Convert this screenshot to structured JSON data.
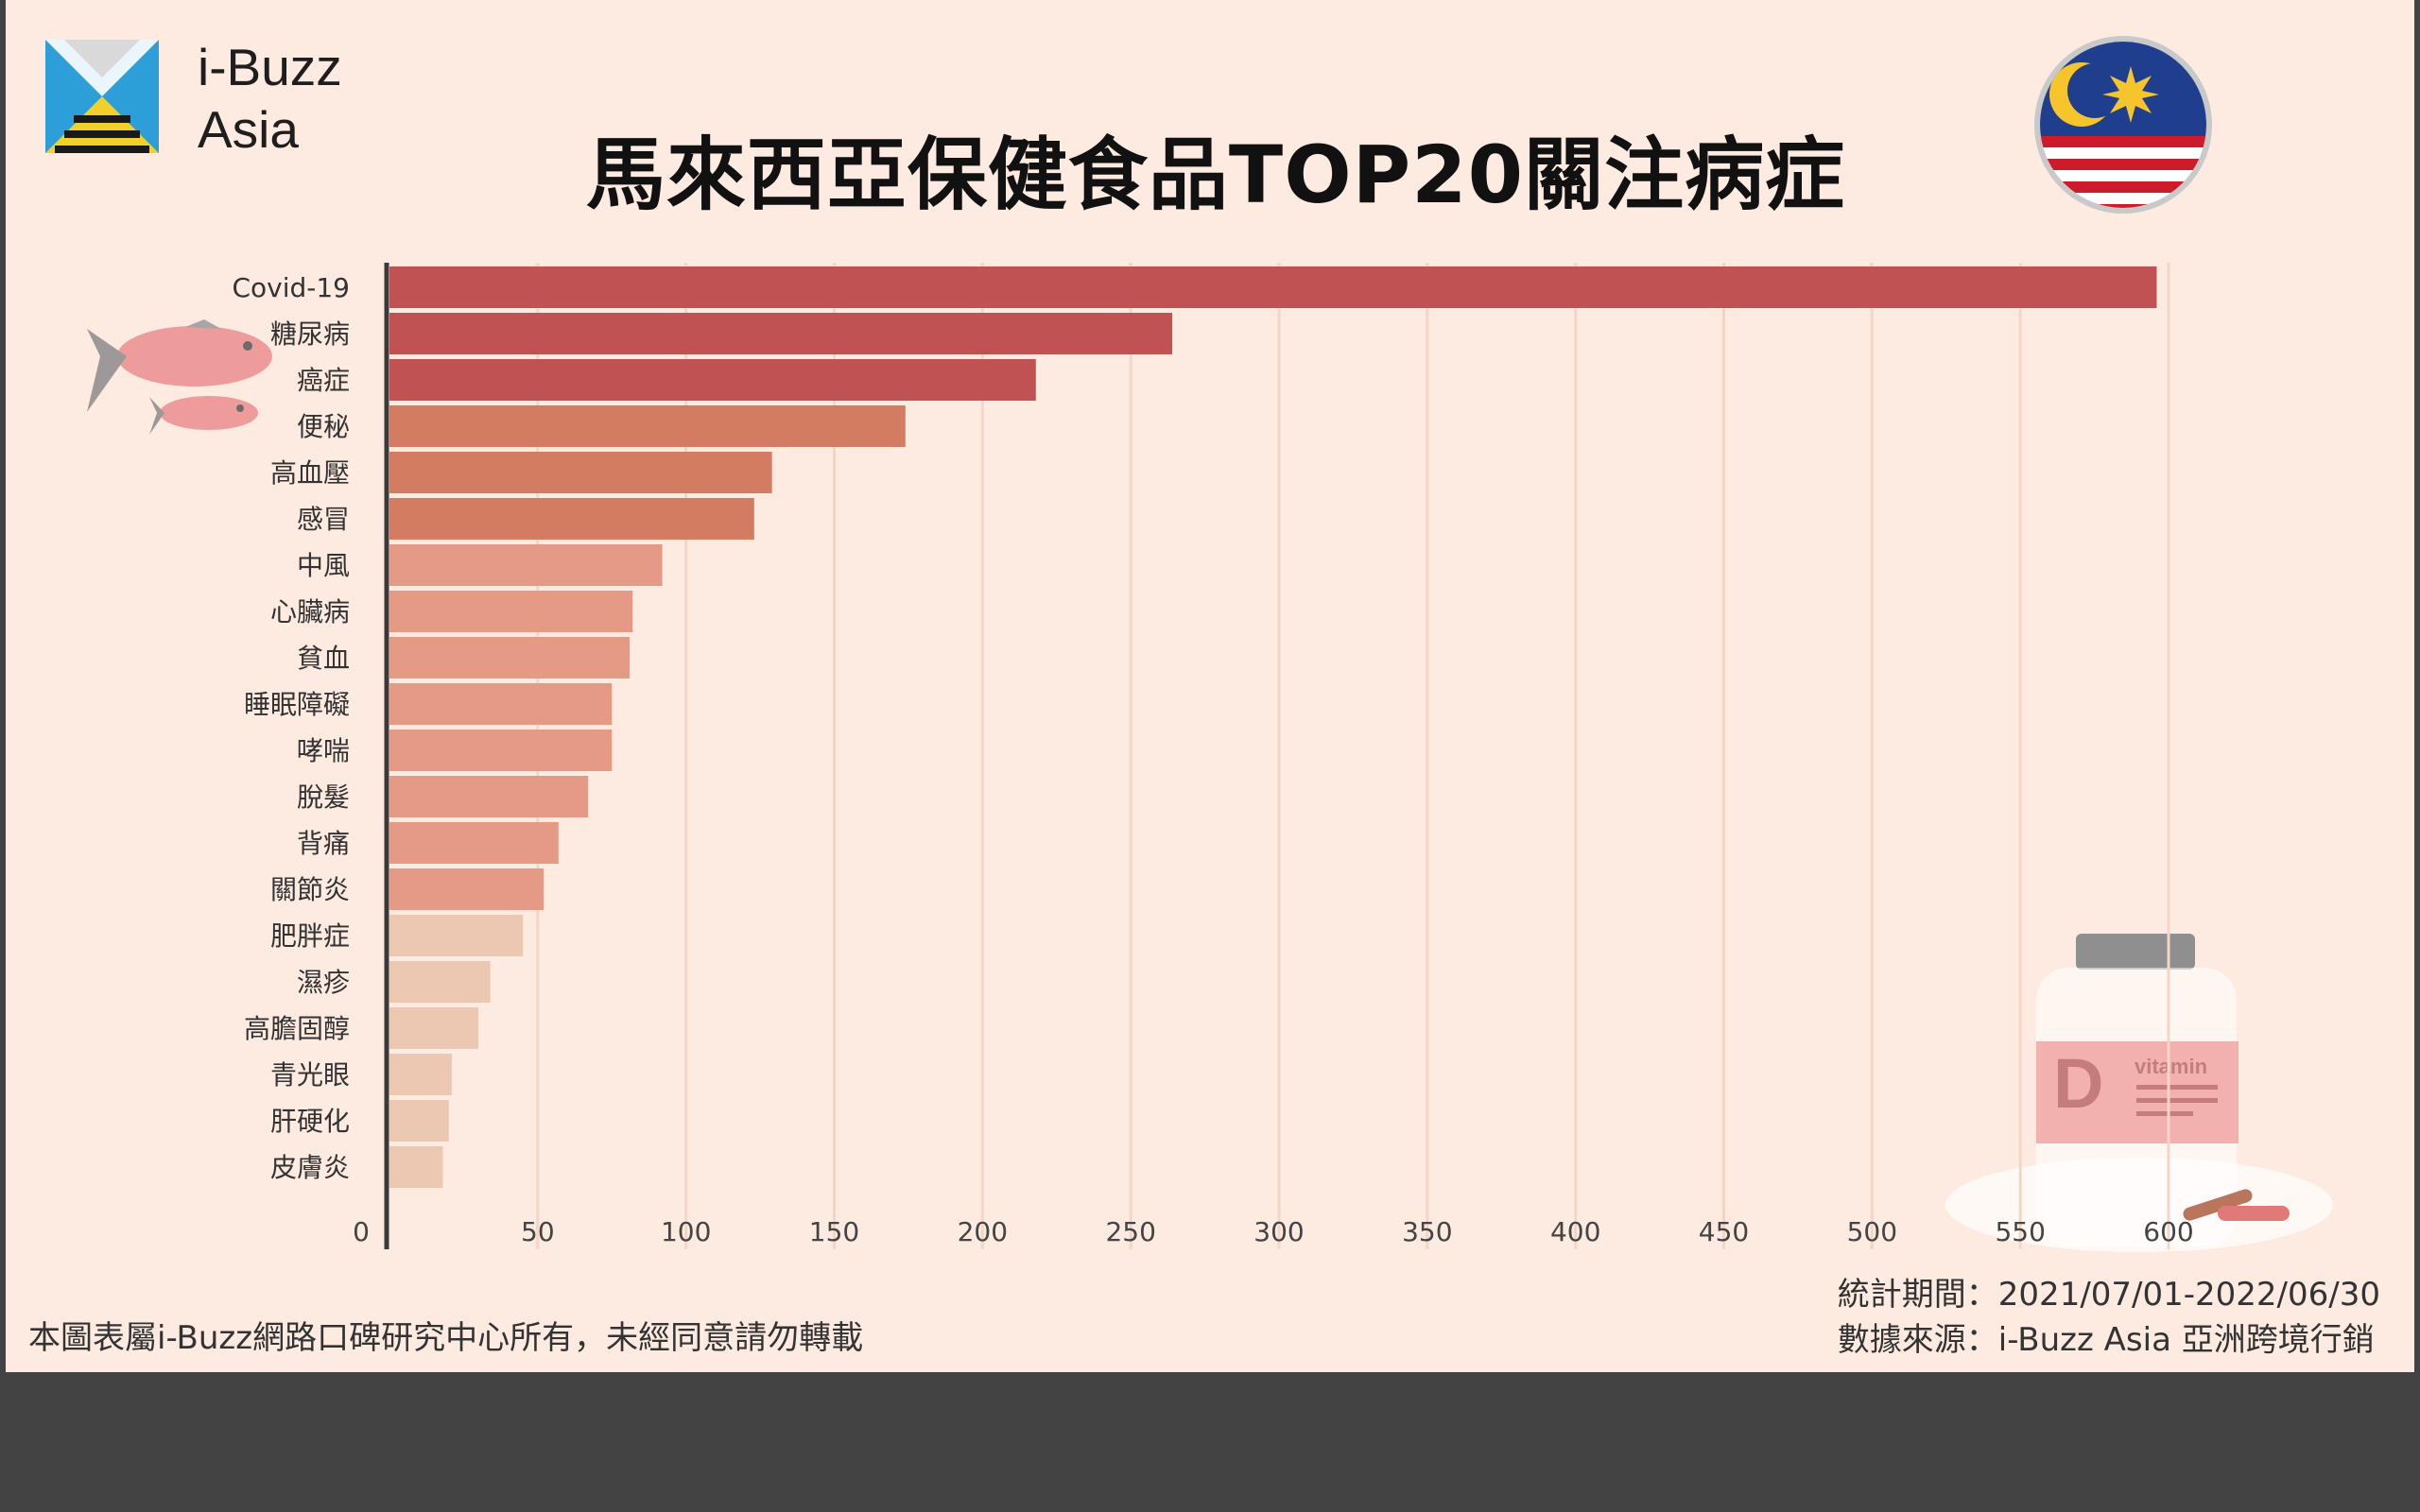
{
  "logo": {
    "line1": "i-Buzz",
    "line2": "Asia"
  },
  "title": "馬來西亞保健食品TOP20關注病症",
  "footer": {
    "copyright": "本圖表屬i-Buzz網路口碑研究中心所有，未經同意請勿轉載",
    "period": "統計期間：2021/07/01-2022/06/30",
    "source": "數據來源：i-Buzz Asia 亞洲跨境行銷"
  },
  "decor": {
    "bottle_label_letter": "D",
    "bottle_label_word": "vitamin"
  },
  "colors": {
    "tier1": "#c05253",
    "tier2": "#d37c62",
    "tier3": "#e49a85",
    "tier4": "#ecc8b3",
    "background": "#fdeae0",
    "gridline": "#f3d6c8"
  },
  "chart_data": {
    "type": "bar",
    "orientation": "horizontal",
    "title": "馬來西亞保健食品TOP20關注病症",
    "xlabel": "",
    "ylabel": "",
    "xlim": [
      0,
      600
    ],
    "xticks": [
      "0",
      "50",
      "100",
      "150",
      "200",
      "250",
      "300",
      "350",
      "400",
      "450",
      "500",
      "550",
      "600"
    ],
    "grid": true,
    "categories": [
      "Covid-19",
      "糖尿病",
      "癌症",
      "便秘",
      "高血壓",
      "感冒",
      "中風",
      "心臟病",
      "貧血",
      "睡眠障礙",
      "哮喘",
      "脫髮",
      "背痛",
      "關節炎",
      "肥胖症",
      "濕疹",
      "高膽固醇",
      "青光眼",
      "肝硬化",
      "皮膚炎"
    ],
    "values": [
      596,
      264,
      218,
      174,
      129,
      123,
      92,
      82,
      81,
      75,
      75,
      67,
      57,
      52,
      45,
      34,
      30,
      21,
      20,
      18
    ],
    "color_tiers": [
      1,
      1,
      1,
      2,
      2,
      2,
      3,
      3,
      3,
      3,
      3,
      3,
      3,
      3,
      4,
      4,
      4,
      4,
      4,
      4
    ]
  }
}
